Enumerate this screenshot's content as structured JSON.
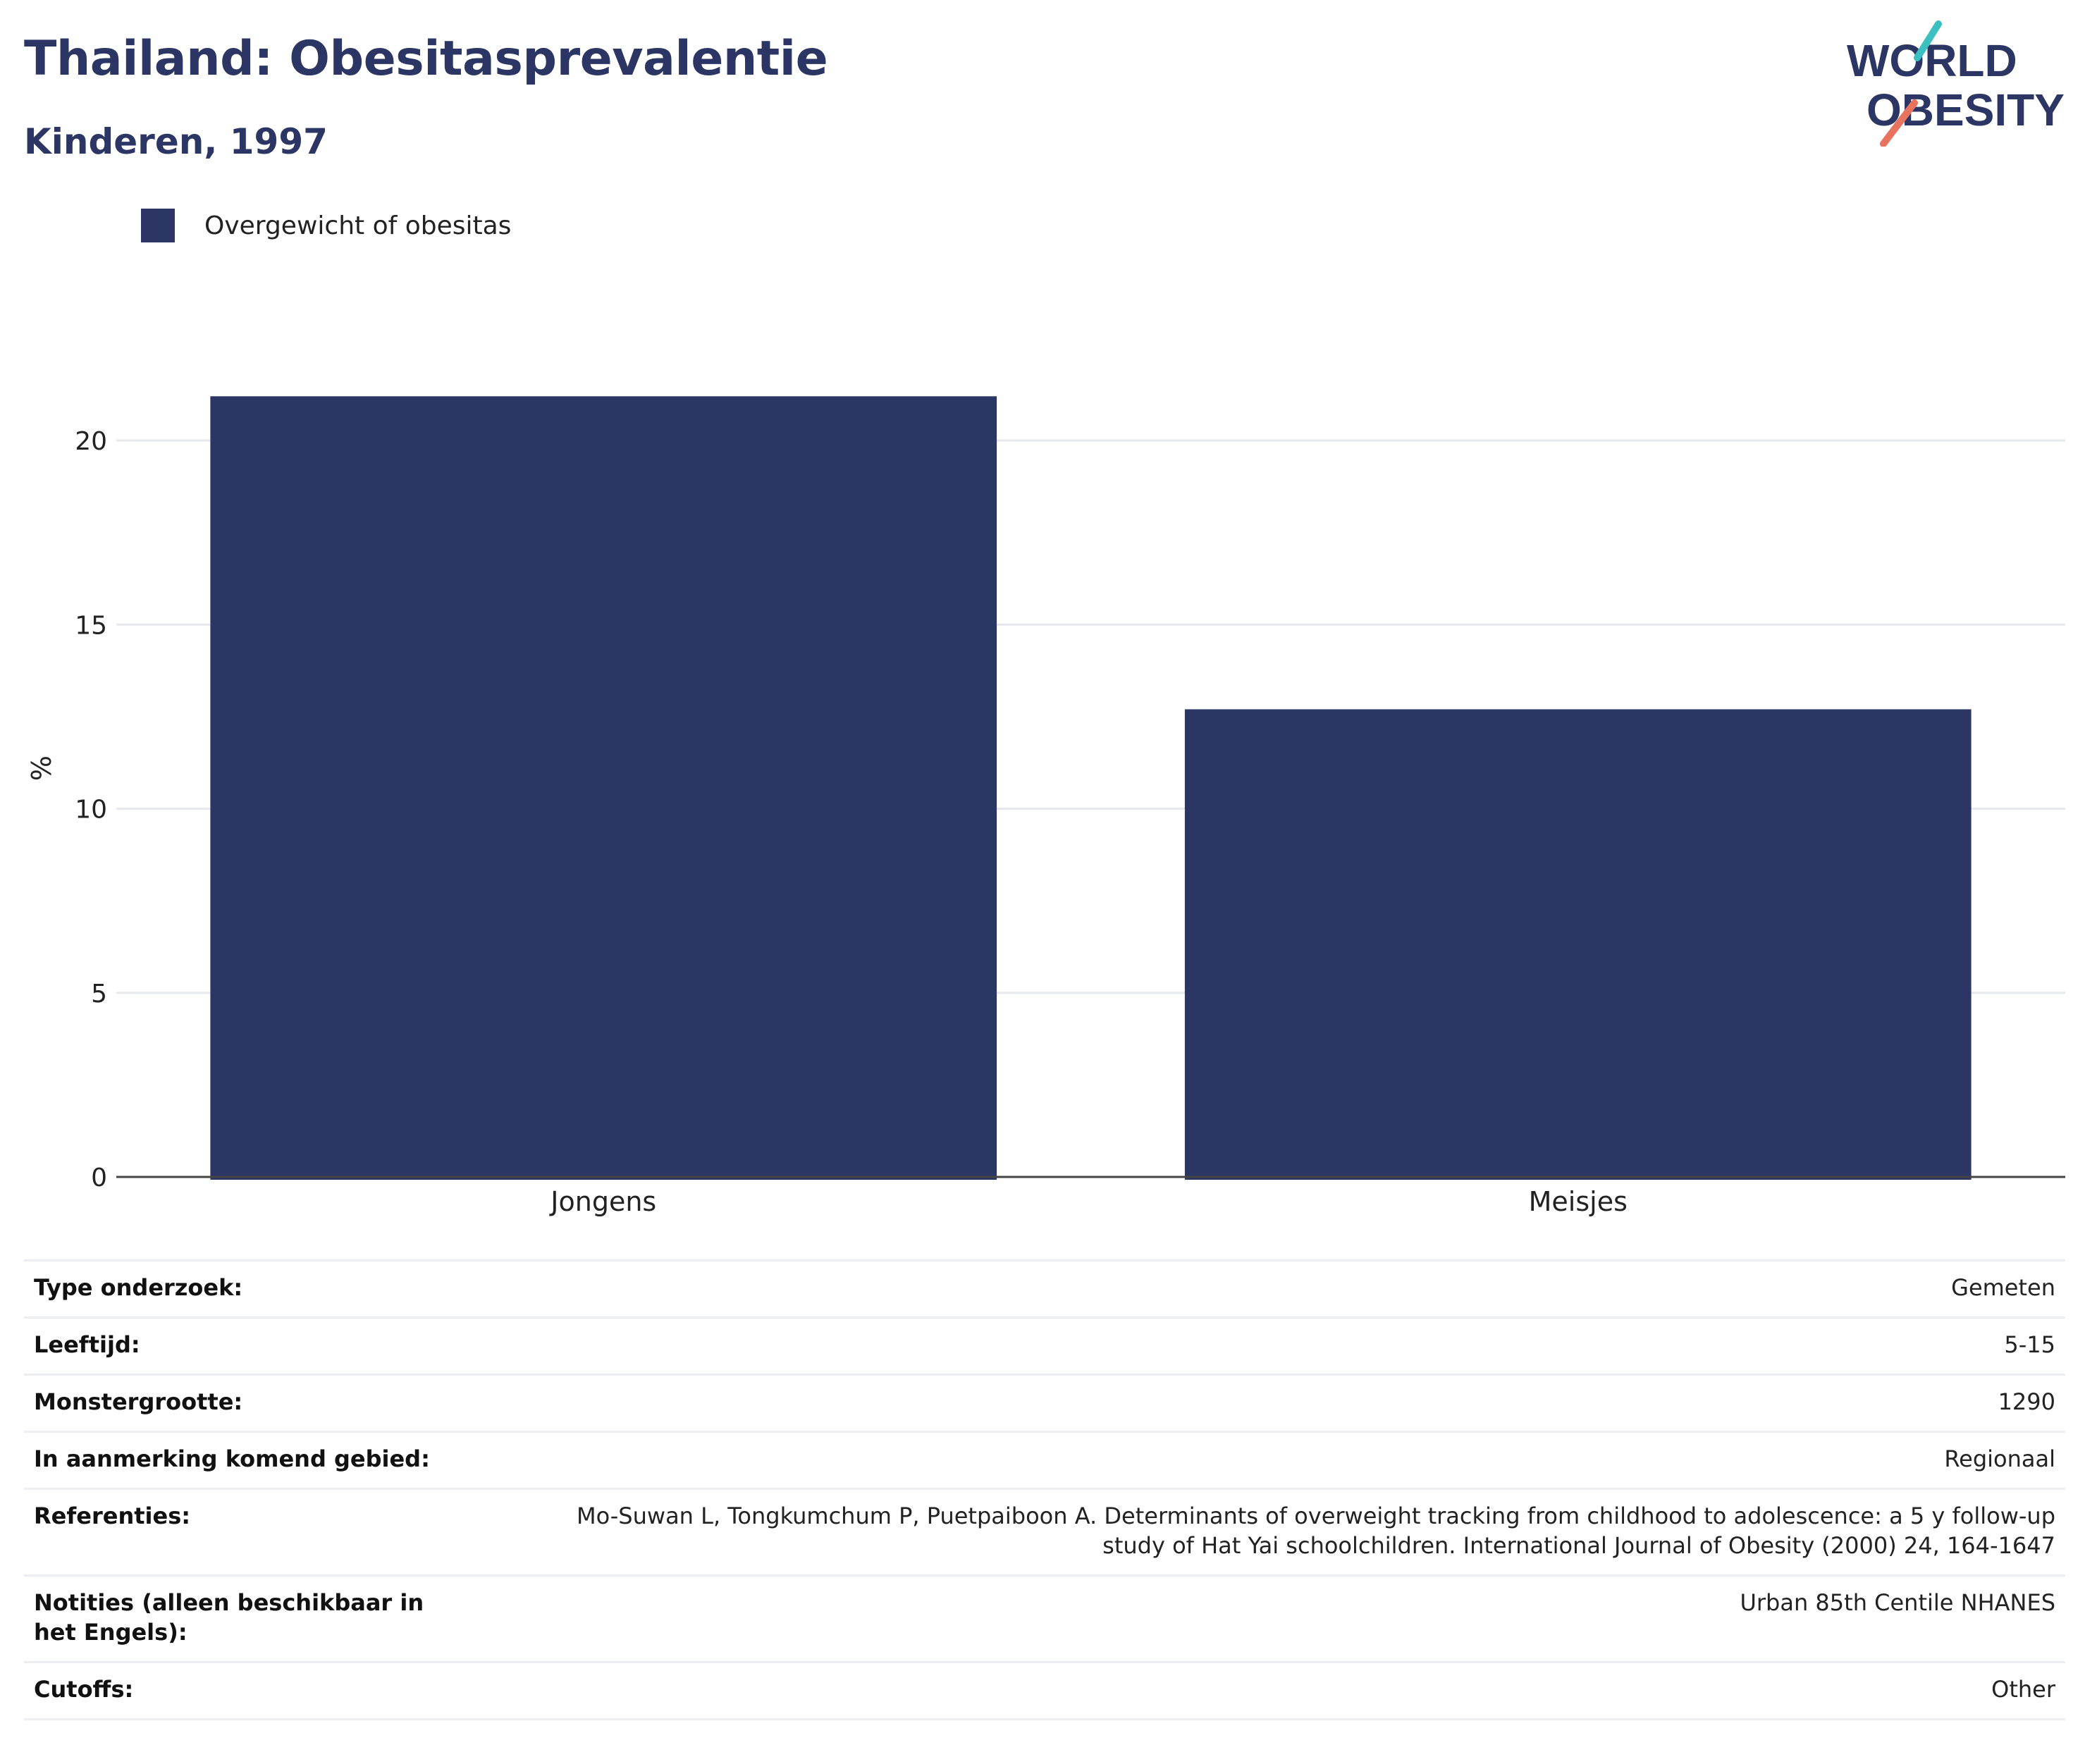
{
  "header": {
    "title": "Thailand: Obesitasprevalentie",
    "subtitle": "Kinderen, 1997"
  },
  "logo": {
    "line1": "WORLD",
    "line2": "OBESITY"
  },
  "chart_data": {
    "type": "bar",
    "categories": [
      "Jongens",
      "Meisjes"
    ],
    "series": [
      {
        "name": "Overgewicht of obesitas",
        "values": [
          21.2,
          12.7
        ],
        "color": "#2b3664"
      }
    ],
    "ylabel": "%",
    "xlabel": "",
    "ylim": [
      0,
      22
    ],
    "yticks": [
      0,
      5,
      10,
      15,
      20
    ],
    "grid": true,
    "legend": "top-left"
  },
  "info_table": [
    {
      "key": "Type onderzoek:",
      "value": "Gemeten"
    },
    {
      "key": "Leeftijd:",
      "value": "5-15"
    },
    {
      "key": "Monstergrootte:",
      "value": "1290"
    },
    {
      "key": "In aanmerking komend gebied:",
      "value": "Regionaal"
    },
    {
      "key": "Referenties:",
      "value": "Mo-Suwan L, Tongkumchum P, Puetpaiboon A. Determinants of overweight tracking from childhood to adolescence: a 5 y follow-up study of Hat Yai schoolchildren. International Journal of Obesity (2000) 24, 164-1647"
    },
    {
      "key": "Notities (alleen beschikbaar in het Engels):",
      "value": "Urban 85th Centile NHANES"
    },
    {
      "key": "Cutoffs:",
      "value": "Other"
    }
  ]
}
